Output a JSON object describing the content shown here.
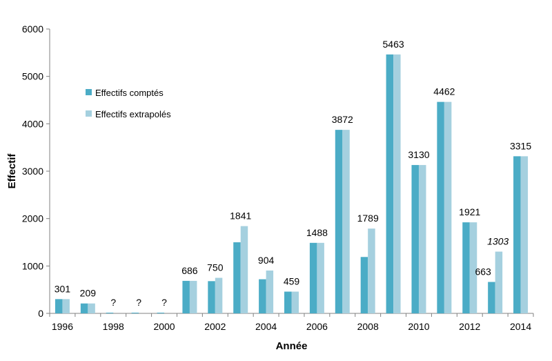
{
  "chart_data": {
    "type": "bar",
    "title": "",
    "xlabel": "Année",
    "ylabel": "Effectif",
    "ylim": [
      0,
      6000
    ],
    "yticks": [
      0,
      1000,
      2000,
      3000,
      4000,
      5000,
      6000
    ],
    "grid": false,
    "legend_position": "top-left",
    "categories": [
      "1996",
      "1997",
      "1998",
      "1999",
      "2000",
      "2001",
      "2002",
      "2003",
      "2004",
      "2005",
      "2006",
      "2007",
      "2008",
      "2009",
      "2010",
      "2011",
      "2012",
      "2013",
      "2014"
    ],
    "x_tick_labels": [
      "1996",
      "1998",
      "2000",
      "2002",
      "2004",
      "2006",
      "2008",
      "2010",
      "2012",
      "2014"
    ],
    "series": [
      {
        "name": "Effectifs comptés",
        "color": "#4bacc6",
        "values": [
          301,
          209,
          15,
          15,
          15,
          686,
          680,
          1500,
          720,
          459,
          1488,
          3872,
          1190,
          5463,
          3130,
          4462,
          1921,
          663,
          3315
        ]
      },
      {
        "name": "Effectifs extrapolés",
        "color": "#a5d0df",
        "values": [
          301,
          209,
          0,
          0,
          0,
          686,
          750,
          1841,
          904,
          459,
          1488,
          3872,
          1789,
          5463,
          3130,
          4462,
          1921,
          1303,
          3315
        ]
      }
    ],
    "data_labels": [
      {
        "category": "1996",
        "text": "301",
        "value": 301
      },
      {
        "category": "1997",
        "text": "209",
        "value": 209
      },
      {
        "category": "1998",
        "text": "?",
        "value": 0
      },
      {
        "category": "1999",
        "text": "?",
        "value": 0
      },
      {
        "category": "2000",
        "text": "?",
        "value": 0
      },
      {
        "category": "2001",
        "text": "686",
        "value": 686
      },
      {
        "category": "2002",
        "text": "750",
        "value": 750
      },
      {
        "category": "2003",
        "text": "1841",
        "value": 1841
      },
      {
        "category": "2004",
        "text": "904",
        "value": 904
      },
      {
        "category": "2005",
        "text": "459",
        "value": 459
      },
      {
        "category": "2006",
        "text": "1488",
        "value": 1488
      },
      {
        "category": "2007",
        "text": "3872",
        "value": 3872
      },
      {
        "category": "2008",
        "text": "1789",
        "value": 1789
      },
      {
        "category": "2009",
        "text": "5463",
        "value": 5463
      },
      {
        "category": "2010",
        "text": "3130",
        "value": 3130
      },
      {
        "category": "2011",
        "text": "4462",
        "value": 4462
      },
      {
        "category": "2012",
        "text": "1921",
        "value": 1921
      },
      {
        "category": "2013",
        "text": "663",
        "value": 663,
        "series": "Effectifs comptés"
      },
      {
        "category": "2013",
        "text": "1303",
        "value": 1303,
        "italic": true,
        "series": "Effectifs extrapolés"
      },
      {
        "category": "2014",
        "text": "3315",
        "value": 3315
      }
    ]
  }
}
